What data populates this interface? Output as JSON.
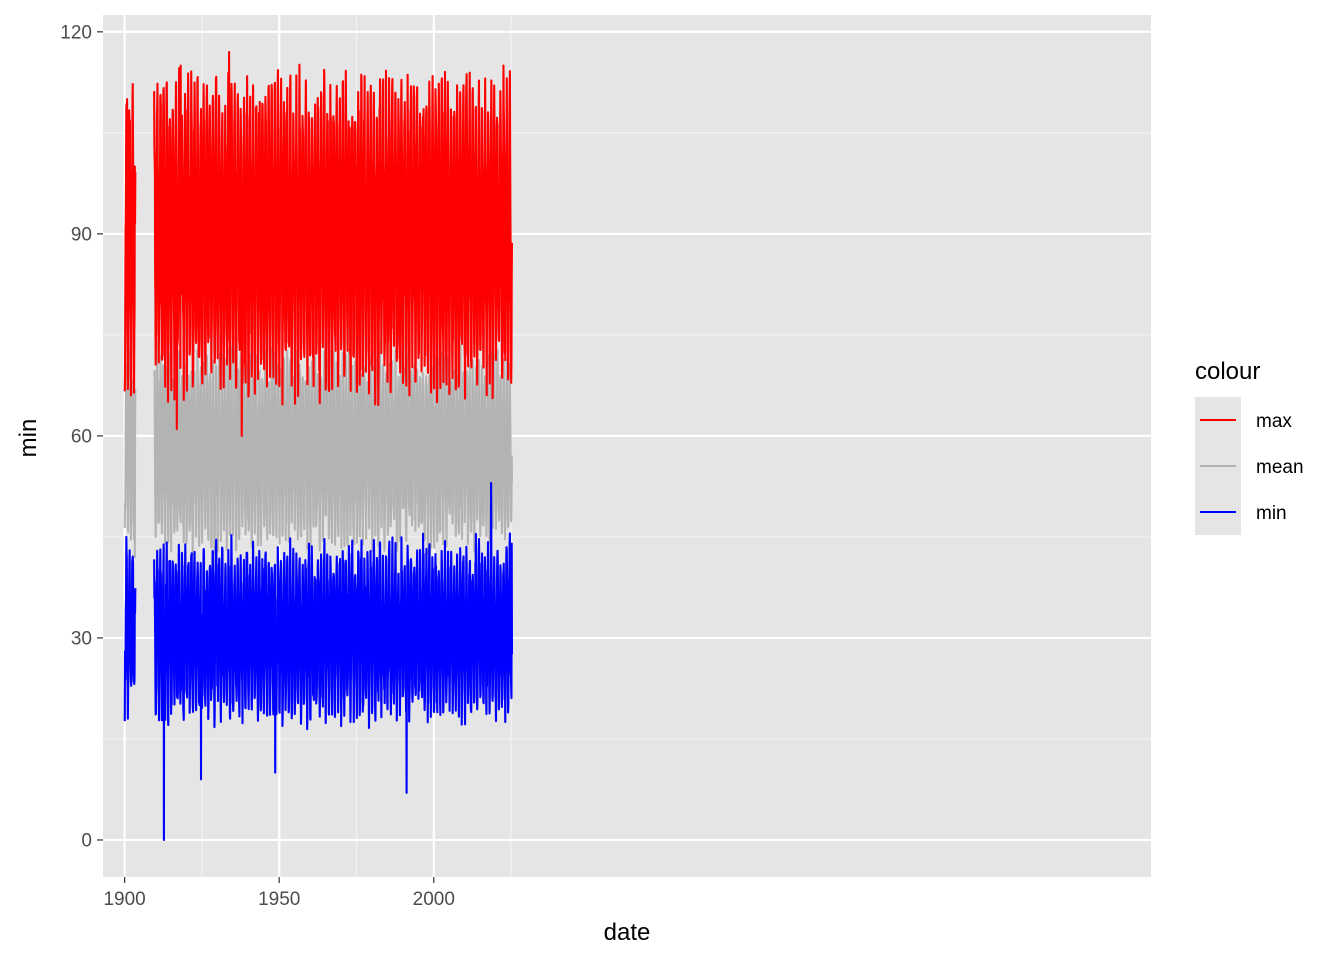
{
  "chart_data": {
    "type": "line",
    "title": "",
    "xlabel": "date",
    "ylabel": "min",
    "x_range": [
      1893,
      2232
    ],
    "ylim": [
      -5.5,
      122.5
    ],
    "x_ticks": [
      {
        "value": 1900,
        "label": "1900"
      },
      {
        "value": 1950,
        "label": "1950"
      },
      {
        "value": 2000,
        "label": "2000"
      }
    ],
    "y_ticks": [
      {
        "value": 0,
        "label": "0"
      },
      {
        "value": 30,
        "label": "30"
      },
      {
        "value": 60,
        "label": "60"
      },
      {
        "value": 90,
        "label": "90"
      },
      {
        "value": 120,
        "label": "120"
      }
    ],
    "grid": true,
    "panel_background": "#e5e5e5",
    "legend": {
      "title": "colour",
      "position": "right",
      "entries": [
        "max",
        "mean",
        "min"
      ]
    },
    "data_gap": [
      1903.5,
      1909.5
    ],
    "x_end": 2025.3,
    "series": [
      {
        "name": "max",
        "color": "#ff0000",
        "frequency": "monthly",
        "typical_low": 70,
        "typical_high": 110,
        "notable_points": [
          {
            "x": 1900.1,
            "y": 69
          },
          {
            "x": 1900.8,
            "y": 110
          },
          {
            "x": 1903.3,
            "y": 100
          },
          {
            "x": 1909.6,
            "y": 103
          },
          {
            "x": 1918.1,
            "y": 115
          },
          {
            "x": 1916.9,
            "y": 61
          },
          {
            "x": 1933.8,
            "y": 117
          },
          {
            "x": 1937.9,
            "y": 60
          },
          {
            "x": 2022.5,
            "y": 115
          },
          {
            "x": 2025.2,
            "y": 84
          }
        ]
      },
      {
        "name": "mean",
        "color": "#b3b3b3",
        "frequency": "monthly",
        "typical_low": 46,
        "typical_high": 70,
        "notable_points": [
          {
            "x": 1900.1,
            "y": 50
          },
          {
            "x": 1903.3,
            "y": 42
          },
          {
            "x": 1909.6,
            "y": 69
          },
          {
            "x": 1910.0,
            "y": 45
          },
          {
            "x": 1987.5,
            "y": 64
          },
          {
            "x": 2025.2,
            "y": 57
          }
        ]
      },
      {
        "name": "min",
        "color": "#0000ff",
        "frequency": "monthly",
        "typical_low": 20,
        "typical_high": 42,
        "notable_points": [
          {
            "x": 1900.1,
            "y": 28
          },
          {
            "x": 1900.5,
            "y": 45
          },
          {
            "x": 1903.3,
            "y": 37
          },
          {
            "x": 1909.6,
            "y": 36
          },
          {
            "x": 1912.7,
            "y": 0
          },
          {
            "x": 1924.7,
            "y": 9
          },
          {
            "x": 1948.7,
            "y": 10
          },
          {
            "x": 1991.2,
            "y": 7
          },
          {
            "x": 2018.5,
            "y": 53
          },
          {
            "x": 2025.2,
            "y": 44
          }
        ]
      }
    ]
  }
}
